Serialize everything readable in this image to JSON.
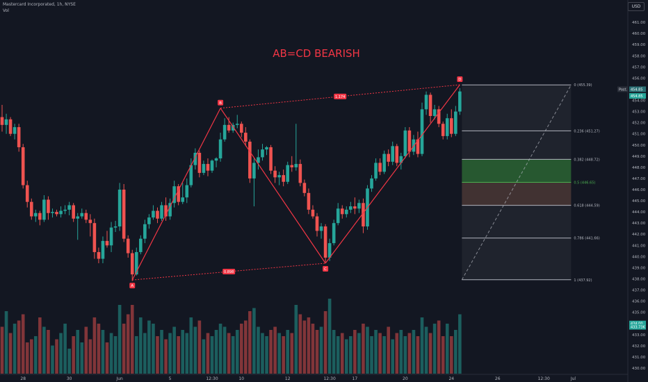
{
  "header": {
    "symbol": "Mastercard Incorporated, 1h, NYSE",
    "volume_label": "Vol",
    "currency": "USD"
  },
  "chart_data": {
    "type": "candlestick",
    "title": "AB=CD BEARISH",
    "y_axis": {
      "min": 429.5,
      "max": 462.5,
      "ticks": [
        "430.00",
        "431.00",
        "432.00",
        "433.00",
        "434.00",
        "435.00",
        "436.00",
        "437.00",
        "438.00",
        "439.00",
        "440.00",
        "441.00",
        "442.00",
        "443.00",
        "444.00",
        "445.00",
        "446.00",
        "447.00",
        "448.00",
        "449.00",
        "450.00",
        "451.00",
        "452.00",
        "453.00",
        "454.00",
        "455.00",
        "456.00",
        "457.00",
        "458.00",
        "459.00",
        "460.00",
        "461.00"
      ]
    },
    "x_axis": {
      "ticks": [
        {
          "label": "28",
          "bar": 5
        },
        {
          "label": "30",
          "bar": 16
        },
        {
          "label": "Jun",
          "bar": 28
        },
        {
          "label": "5",
          "bar": 40
        },
        {
          "label": "12:30",
          "bar": 50
        },
        {
          "label": "10",
          "bar": 57
        },
        {
          "label": "12",
          "bar": 68
        },
        {
          "label": "12:30",
          "bar": 78
        },
        {
          "label": "17",
          "bar": 84
        },
        {
          "label": "20",
          "bar": 96
        },
        {
          "label": "24",
          "bar": 107
        },
        {
          "label": "26",
          "bar": 118
        },
        {
          "label": "12:30",
          "bar": 129
        },
        {
          "label": "Jul",
          "bar": 136
        }
      ]
    },
    "colors": {
      "up": "#26a69a",
      "down": "#ef5350",
      "pattern": "#f23645",
      "background": "#131722"
    },
    "candles": [
      [
        452.5,
        453.6,
        451.2,
        451.8
      ],
      [
        451.8,
        452.8,
        451.0,
        452.3
      ],
      [
        452.3,
        452.5,
        450.8,
        451.0
      ],
      [
        451.0,
        451.9,
        450.5,
        451.6
      ],
      [
        451.6,
        451.9,
        449.4,
        449.8
      ],
      [
        449.8,
        450.1,
        446.1,
        446.4
      ],
      [
        446.4,
        446.8,
        444.4,
        444.9
      ],
      [
        444.9,
        445.2,
        443.3,
        443.6
      ],
      [
        443.6,
        444.2,
        443.1,
        443.9
      ],
      [
        443.9,
        444.1,
        442.8,
        443.3
      ],
      [
        443.3,
        445.5,
        443.1,
        445.1
      ],
      [
        445.1,
        445.4,
        443.3,
        443.9
      ],
      [
        443.9,
        444.3,
        443.5,
        444.0
      ],
      [
        444.0,
        444.2,
        443.6,
        443.8
      ],
      [
        443.8,
        444.5,
        443.5,
        444.1
      ],
      [
        444.1,
        444.6,
        443.8,
        444.2
      ],
      [
        444.2,
        444.9,
        443.7,
        444.6
      ],
      [
        444.6,
        444.8,
        443.1,
        443.4
      ],
      [
        443.4,
        443.9,
        441.5,
        443.6
      ],
      [
        443.6,
        444.3,
        443.4,
        443.9
      ],
      [
        443.9,
        444.2,
        443.0,
        443.3
      ],
      [
        443.3,
        443.8,
        441.8,
        443.0
      ],
      [
        443.0,
        443.4,
        439.8,
        440.4
      ],
      [
        440.4,
        440.8,
        439.4,
        439.8
      ],
      [
        439.8,
        441.8,
        439.4,
        441.4
      ],
      [
        441.4,
        442.3,
        440.8,
        441.0
      ],
      [
        441.0,
        443.1,
        440.4,
        442.6
      ],
      [
        442.6,
        443.2,
        442.2,
        442.7
      ],
      [
        442.7,
        446.6,
        442.3,
        446.0
      ],
      [
        446.0,
        446.5,
        441.3,
        441.6
      ],
      [
        441.6,
        441.9,
        439.9,
        440.3
      ],
      [
        440.3,
        440.6,
        437.8,
        438.4
      ],
      [
        438.4,
        440.8,
        438.3,
        440.4
      ],
      [
        440.4,
        441.9,
        440.2,
        441.6
      ],
      [
        441.6,
        443.3,
        441.2,
        442.9
      ],
      [
        442.9,
        443.8,
        442.5,
        443.5
      ],
      [
        443.5,
        444.6,
        443.3,
        444.1
      ],
      [
        444.1,
        444.4,
        443.0,
        443.4
      ],
      [
        443.4,
        444.9,
        443.2,
        444.6
      ],
      [
        444.6,
        445.3,
        443.2,
        443.6
      ],
      [
        443.6,
        445.2,
        443.3,
        444.8
      ],
      [
        444.8,
        446.8,
        444.4,
        446.3
      ],
      [
        446.3,
        446.5,
        444.6,
        444.9
      ],
      [
        444.9,
        446.6,
        444.7,
        445.3
      ],
      [
        445.3,
        447.0,
        444.8,
        446.4
      ],
      [
        446.4,
        448.8,
        446.2,
        448.2
      ],
      [
        448.2,
        449.7,
        447.8,
        449.3
      ],
      [
        449.3,
        449.5,
        447.1,
        447.5
      ],
      [
        447.5,
        448.6,
        447.3,
        448.3
      ],
      [
        448.3,
        448.8,
        447.2,
        447.7
      ],
      [
        447.7,
        448.7,
        447.5,
        448.6
      ],
      [
        448.6,
        448.9,
        448.0,
        448.8
      ],
      [
        448.8,
        451.1,
        448.5,
        450.5
      ],
      [
        450.5,
        452.4,
        450.3,
        451.8
      ],
      [
        451.8,
        452.5,
        451.1,
        451.3
      ],
      [
        451.3,
        452.0,
        451.1,
        451.8
      ],
      [
        451.8,
        452.7,
        451.5,
        451.9
      ],
      [
        451.9,
        452.1,
        450.7,
        451.1
      ],
      [
        451.1,
        451.6,
        449.9,
        450.3
      ],
      [
        450.3,
        450.5,
        446.6,
        447.0
      ],
      [
        447.0,
        448.8,
        444.5,
        448.4
      ],
      [
        448.4,
        449.6,
        447.8,
        448.9
      ],
      [
        448.9,
        450.1,
        448.6,
        449.6
      ],
      [
        449.6,
        449.9,
        449.1,
        449.8
      ],
      [
        449.8,
        450.0,
        447.4,
        447.7
      ],
      [
        447.7,
        448.1,
        446.6,
        447.1
      ],
      [
        447.1,
        447.6,
        446.4,
        447.3
      ],
      [
        447.3,
        447.8,
        446.3,
        446.7
      ],
      [
        446.7,
        448.5,
        446.5,
        448.2
      ],
      [
        448.2,
        449.0,
        447.6,
        448.0
      ],
      [
        448.0,
        451.9,
        447.7,
        448.3
      ],
      [
        448.3,
        448.7,
        446.3,
        446.6
      ],
      [
        446.6,
        446.9,
        445.4,
        445.7
      ],
      [
        445.7,
        446.1,
        443.8,
        444.2
      ],
      [
        444.2,
        444.6,
        443.4,
        443.6
      ],
      [
        443.6,
        443.9,
        441.8,
        442.3
      ],
      [
        442.3,
        443.0,
        441.6,
        442.7
      ],
      [
        442.7,
        442.9,
        439.5,
        439.9
      ],
      [
        439.9,
        441.6,
        439.6,
        441.2
      ],
      [
        441.2,
        443.3,
        441.0,
        443.0
      ],
      [
        443.0,
        444.8,
        442.8,
        444.3
      ],
      [
        444.3,
        444.6,
        443.4,
        443.8
      ],
      [
        443.8,
        444.5,
        443.5,
        444.2
      ],
      [
        444.2,
        444.9,
        443.9,
        444.5
      ],
      [
        444.5,
        445.3,
        443.8,
        444.3
      ],
      [
        444.3,
        445.1,
        443.9,
        444.8
      ],
      [
        444.8,
        445.2,
        442.1,
        442.7
      ],
      [
        442.7,
        446.4,
        442.4,
        446.1
      ],
      [
        446.1,
        447.3,
        445.8,
        447.0
      ],
      [
        447.0,
        448.8,
        446.8,
        448.4
      ],
      [
        448.4,
        448.8,
        447.3,
        447.6
      ],
      [
        447.6,
        449.5,
        447.4,
        449.2
      ],
      [
        449.2,
        449.6,
        448.1,
        448.5
      ],
      [
        448.5,
        450.3,
        448.2,
        449.9
      ],
      [
        449.9,
        450.1,
        448.1,
        448.4
      ],
      [
        448.4,
        449.3,
        447.8,
        449.0
      ],
      [
        449.0,
        451.6,
        448.8,
        451.3
      ],
      [
        451.3,
        451.6,
        448.9,
        449.4
      ],
      [
        449.4,
        450.9,
        449.1,
        450.5
      ],
      [
        450.5,
        451.2,
        448.9,
        449.2
      ],
      [
        449.2,
        453.8,
        449.0,
        453.2
      ],
      [
        453.2,
        454.8,
        452.7,
        454.5
      ],
      [
        454.5,
        454.7,
        452.0,
        452.6
      ],
      [
        452.6,
        453.6,
        452.3,
        453.2
      ],
      [
        453.2,
        453.5,
        451.6,
        451.9
      ],
      [
        451.9,
        452.1,
        450.5,
        450.8
      ],
      [
        450.8,
        452.8,
        450.5,
        452.4
      ],
      [
        452.4,
        453.2,
        450.7,
        451.0
      ],
      [
        451.0,
        453.5,
        450.8,
        453.0
      ],
      [
        453.0,
        455.1,
        452.7,
        454.8
      ]
    ],
    "volume": [
      15,
      20,
      13,
      16,
      17,
      19,
      10,
      11,
      12,
      18,
      15,
      14,
      9,
      11,
      13,
      16,
      8,
      12,
      14,
      10,
      15,
      11,
      18,
      16,
      14,
      10,
      13,
      12,
      22,
      16,
      19,
      22,
      12,
      18,
      13,
      17,
      16,
      12,
      14,
      11,
      13,
      15,
      12,
      14,
      13,
      18,
      15,
      17,
      11,
      13,
      12,
      14,
      16,
      15,
      13,
      12,
      14,
      16,
      17,
      20,
      21,
      15,
      13,
      12,
      14,
      15,
      13,
      12,
      14,
      13,
      22,
      19,
      17,
      18,
      16,
      14,
      15,
      20,
      24,
      14,
      12,
      13,
      11,
      12,
      14,
      13,
      16,
      15,
      12,
      14,
      13,
      12,
      15,
      11,
      13,
      14,
      12,
      13,
      14,
      12,
      18,
      15,
      13,
      16,
      17,
      12,
      16,
      12,
      14,
      19
    ],
    "pattern": {
      "type": "ABCD",
      "points": [
        {
          "label": "A",
          "bar": 31,
          "price": 437.9
        },
        {
          "label": "B",
          "bar": 52,
          "price": 453.3
        },
        {
          "label": "C",
          "bar": 77,
          "price": 439.4
        },
        {
          "label": "D",
          "bar": 109,
          "price": 455.4
        }
      ],
      "ratios": [
        {
          "label": "0.898",
          "from": "A",
          "to": "C"
        },
        {
          "label": "1.174",
          "from": "B",
          "to": "D"
        }
      ]
    },
    "fibonacci": {
      "start_bar": 109,
      "end_bar": 135,
      "levels": [
        {
          "ratio": "0",
          "price": 455.39,
          "label": "0 (455.39)",
          "color": "#b2b5be",
          "fill": "rgba(120,123,134,0.12)"
        },
        {
          "ratio": "0.236",
          "price": 451.27,
          "label": "0.236 (451.27)",
          "color": "#b2b5be",
          "fill": "rgba(120,123,134,0.12)"
        },
        {
          "ratio": "0.382",
          "price": 448.72,
          "label": "0.382 (448.72)",
          "color": "#b2b5be",
          "fill": "rgba(56,142,60,0.55)"
        },
        {
          "ratio": "0.5",
          "price": 446.65,
          "label": "0.5 (446.65)",
          "color": "#4caf50",
          "fill": "rgba(121,85,72,0.45)"
        },
        {
          "ratio": "0.618",
          "price": 444.59,
          "label": "0.618 (444.59)",
          "color": "#b2b5be",
          "fill": "rgba(120,123,134,0.12)"
        },
        {
          "ratio": "0.786",
          "price": 441.66,
          "label": "0.786 (441.66)",
          "color": "#b2b5be",
          "fill": "rgba(120,123,134,0.12)"
        },
        {
          "ratio": "1",
          "price": 437.92,
          "label": "1 (437.92)",
          "color": "#b2b5be",
          "fill": null
        }
      ]
    },
    "price_badges": [
      {
        "label": "Post.",
        "value": "454.85",
        "price": 455.0
      },
      {
        "label": "",
        "value": "454.85",
        "price": 454.4
      }
    ],
    "volume_badges": [
      {
        "label": "",
        "value": "434.00",
        "price": 434.0
      },
      {
        "label": "",
        "value": "433.73K",
        "price": 433.7
      }
    ]
  }
}
